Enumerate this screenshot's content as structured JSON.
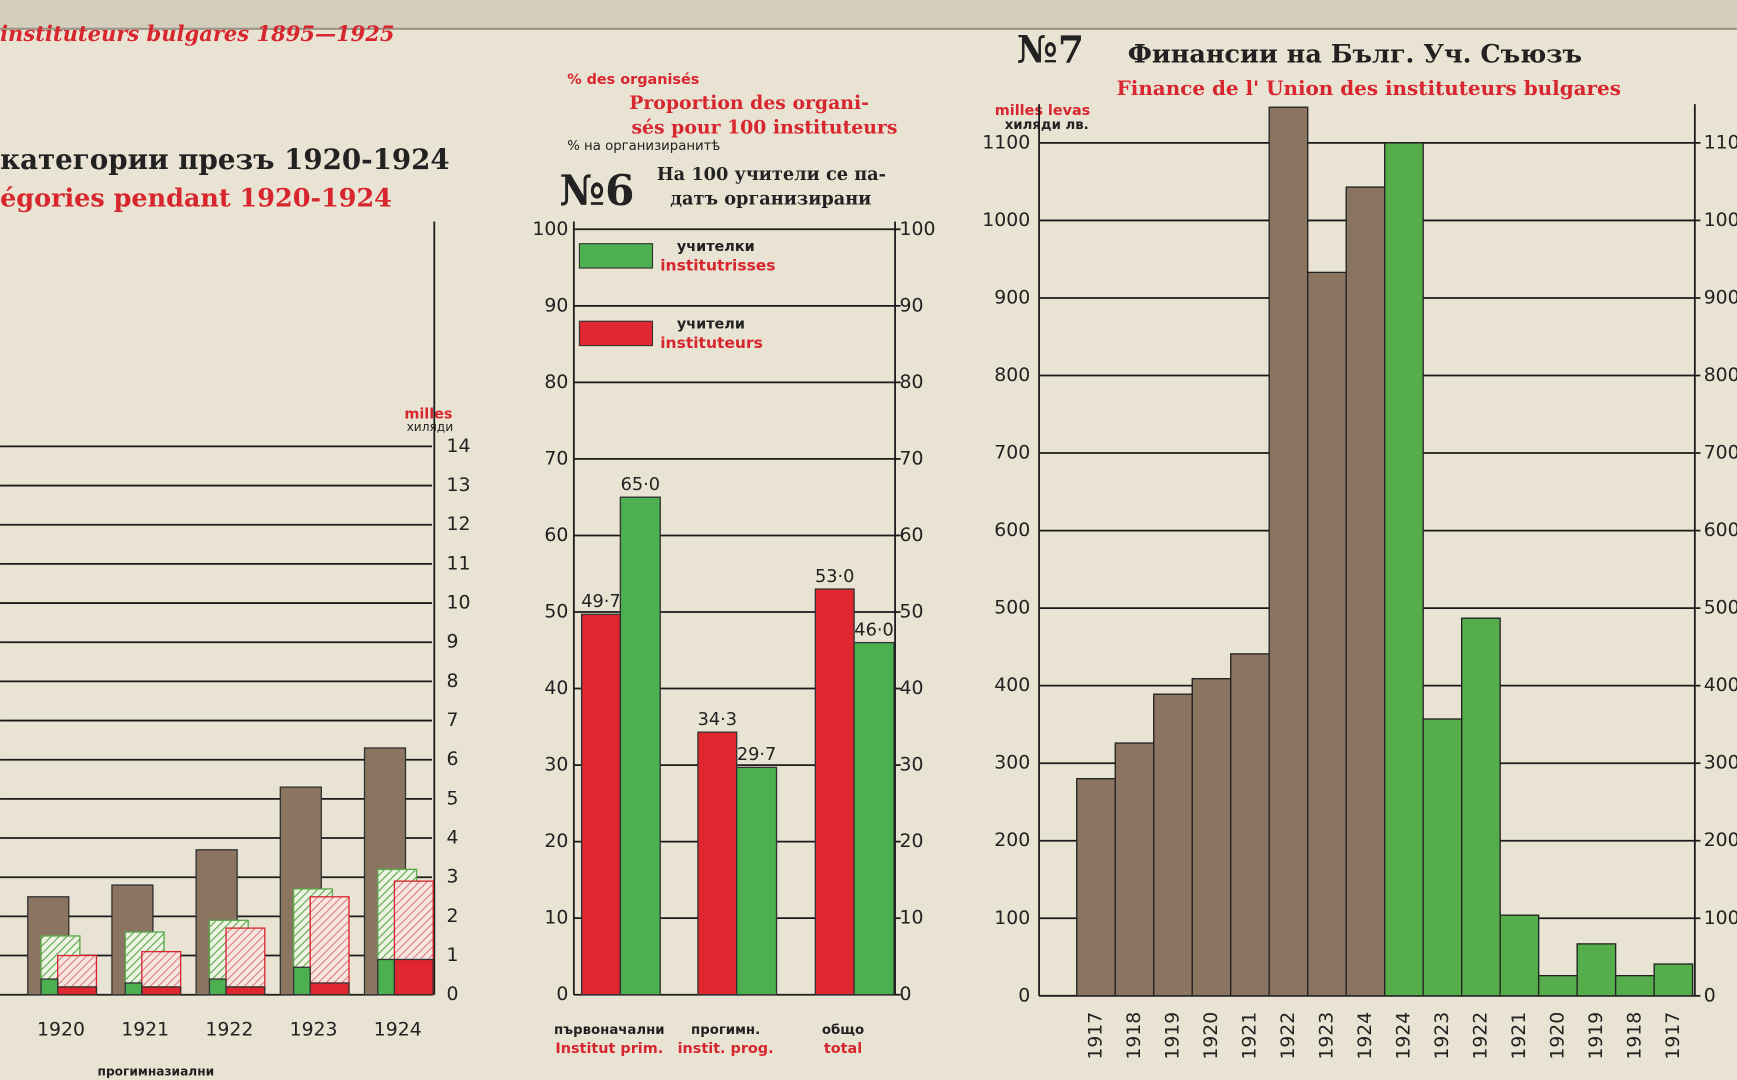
{
  "chart_data": [
    {
      "type": "bar",
      "header": "instituteurs bulgares 1895—1925",
      "title": "категории презъ 1920-1924",
      "subtitle": "égories pendant 1920-1924",
      "y_label": "milles",
      "y_label_bg": "хиляди",
      "categories": [
        "1920",
        "1921",
        "1922",
        "1923",
        "1924"
      ],
      "ylim": [
        0,
        14
      ],
      "yticks": [
        0,
        1,
        2,
        3,
        4,
        5,
        6,
        7,
        8,
        9,
        10,
        11,
        12,
        13,
        14
      ],
      "grid": true,
      "series": [
        {
          "color": "#8b7560",
          "style": "solid",
          "values": [
            2.5,
            2.8,
            3.7,
            5.3,
            6.3
          ]
        },
        {
          "color": "#5aa84a",
          "style": "hatched",
          "values": [
            1.5,
            1.6,
            1.9,
            2.7,
            3.2
          ]
        },
        {
          "color": "#d8262e",
          "style": "hatched",
          "values": [
            1.0,
            1.1,
            1.7,
            2.5,
            2.9
          ]
        },
        {
          "color": "#4caf50",
          "style": "solid",
          "values": [
            0.4,
            0.3,
            0.4,
            0.7,
            0.9
          ]
        },
        {
          "color": "#e0262e",
          "style": "solid",
          "values": [
            0.2,
            0.2,
            0.2,
            0.3,
            0.9
          ]
        }
      ],
      "footnote": "прогимназиални"
    },
    {
      "type": "bar",
      "number": "№6",
      "unit_fr": "% des organisés",
      "title_fr": [
        "Proportion des organi-",
        "sés pour 100 instituteurs"
      ],
      "unit_bg": "% на организиранитѣ",
      "title_bg": [
        "На 100 учители се па-",
        "датъ организирани"
      ],
      "categories": [
        "първоначални",
        "прогимн.",
        "общо"
      ],
      "categories_fr": [
        "Institut prim.",
        "instit. prog.",
        "total"
      ],
      "ylim": [
        0,
        100
      ],
      "yticks": [
        0,
        10,
        20,
        30,
        40,
        50,
        60,
        70,
        80,
        90,
        100
      ],
      "y2lim": [
        0,
        100
      ],
      "y2ticks": [
        0,
        10,
        20,
        30,
        40,
        50,
        60,
        70,
        80,
        90,
        100
      ],
      "grid": true,
      "series": [
        {
          "name": "учители",
          "name_fr": "instituteurs",
          "color": "#e0262e",
          "values": [
            49.7,
            34.3,
            53.0
          ],
          "value_labels": [
            "49·7",
            "34·3",
            "53·0"
          ]
        },
        {
          "name": "учителки",
          "name_fr": "institutrisses",
          "color": "#4caf50",
          "values": [
            65.0,
            29.7,
            46.0
          ],
          "value_labels": [
            "65·0",
            "29·7",
            "46·0"
          ]
        }
      ]
    },
    {
      "type": "bar",
      "number": "№7",
      "title": "Финансии на Бълг. Уч. Съюзъ",
      "subtitle": "Finance de l' Union des instituteurs bulgares",
      "y_label": "milles levas",
      "y_label_bg": "хиляди лв.",
      "categories": [
        "1917",
        "1918",
        "1919",
        "1920",
        "1921",
        "1922",
        "1923",
        "1924",
        "1924",
        "1923",
        "1922",
        "1921",
        "1920",
        "1919",
        "1918",
        "1917"
      ],
      "ylim": [
        0,
        1150
      ],
      "yticks": [
        0,
        100,
        200,
        300,
        400,
        500,
        600,
        700,
        800,
        900,
        1000,
        1100
      ],
      "y2lim": [
        0,
        1150
      ],
      "y2ticks": [
        0,
        100,
        200,
        300,
        400,
        500,
        600,
        700,
        800,
        900,
        1000,
        1100
      ],
      "grid": true,
      "series": [
        {
          "color": "#8b7560",
          "values": [
            280,
            326,
            389,
            409,
            441,
            1146,
            933,
            1043,
            null,
            null,
            null,
            null,
            null,
            null,
            null,
            null
          ]
        },
        {
          "color": "#55ad4c",
          "values": [
            null,
            null,
            null,
            null,
            null,
            null,
            null,
            null,
            1100,
            357,
            487,
            104,
            26,
            67,
            26,
            41
          ]
        }
      ]
    }
  ]
}
